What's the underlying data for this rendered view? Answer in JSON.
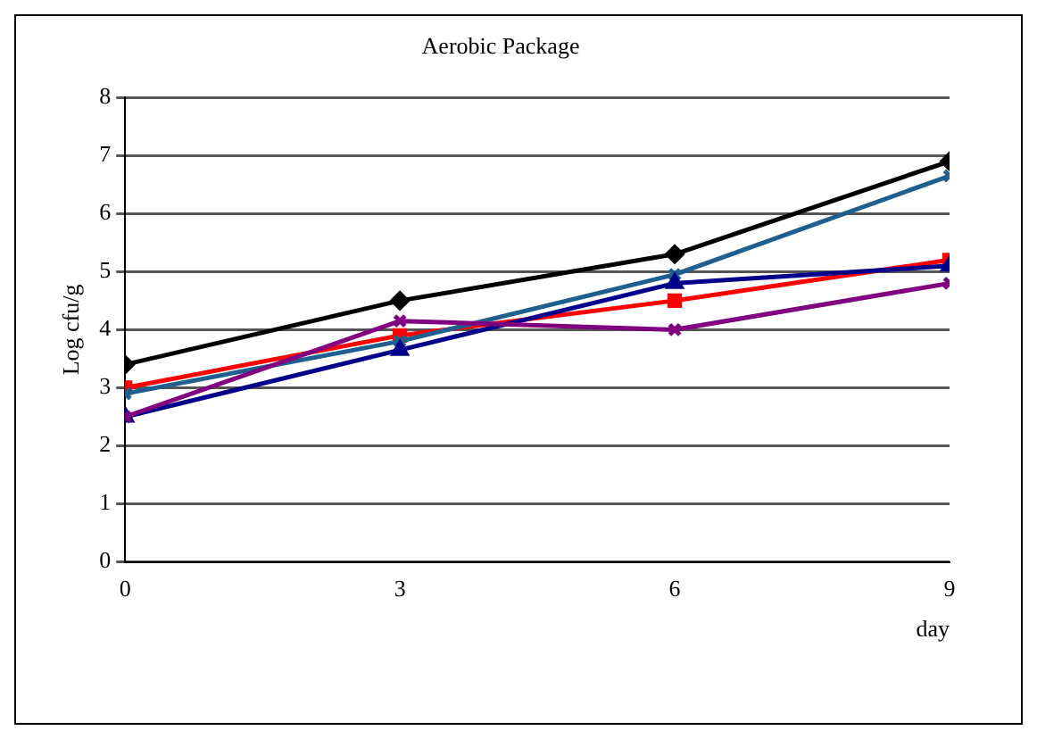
{
  "chart_data": {
    "type": "line",
    "title": "Aerobic Package",
    "xlabel": "day",
    "ylabel": "Log cfu/g",
    "x": [
      0,
      3,
      6,
      9
    ],
    "xlim": [
      0,
      9
    ],
    "xticks": [
      0,
      3,
      6,
      9
    ],
    "ylim": [
      0,
      8
    ],
    "yticks": [
      0,
      1,
      2,
      3,
      4,
      5,
      6,
      7,
      8
    ],
    "grid": "y",
    "legend": false,
    "series": [
      {
        "color": "#000000",
        "marker": "diamond",
        "values": [
          3.4,
          4.5,
          5.3,
          6.9
        ]
      },
      {
        "color": "#ff0000",
        "marker": "square",
        "values": [
          3.0,
          3.9,
          4.5,
          5.2
        ]
      },
      {
        "color": "#1f5f8f",
        "marker": "cross",
        "values": [
          2.9,
          3.8,
          4.95,
          6.65
        ]
      },
      {
        "color": "#00008b",
        "marker": "triangle",
        "values": [
          2.5,
          3.65,
          4.8,
          5.1
        ]
      },
      {
        "color": "#800080",
        "marker": "cross",
        "values": [
          2.5,
          4.15,
          4.0,
          4.8
        ]
      }
    ]
  }
}
